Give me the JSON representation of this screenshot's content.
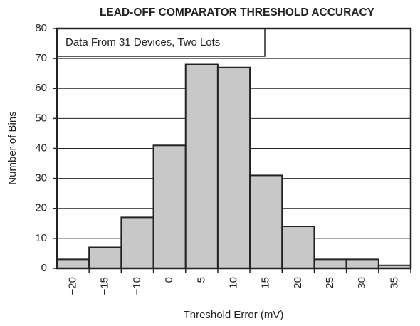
{
  "chart_data": {
    "type": "bar",
    "title": "LEAD-OFF COMPARATOR THRESHOLD ACCURACY",
    "annotation": "Data From 31 Devices, Two Lots",
    "x_label": "Threshold Error (mV)",
    "y_label": "Number of Bins",
    "categories": [
      "−20",
      "−15",
      "−10",
      "0",
      "5",
      "10",
      "15",
      "20",
      "25",
      "30",
      "35"
    ],
    "values": [
      3,
      7,
      17,
      41,
      68,
      67,
      31,
      14,
      3,
      3,
      1
    ],
    "color": "#c8c8c8",
    "ylim": [
      0,
      80
    ],
    "yticks": [
      0,
      10,
      20,
      30,
      40,
      50,
      60,
      70,
      80
    ],
    "grid": true
  }
}
